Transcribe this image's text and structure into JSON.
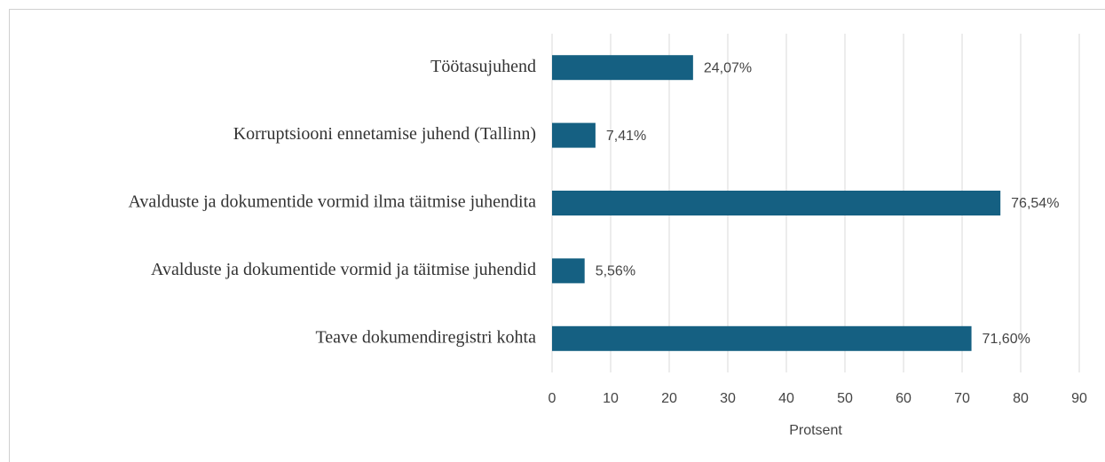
{
  "chart_data": {
    "type": "bar",
    "orientation": "horizontal",
    "categories": [
      "Töötasujuhend",
      "Korruptsiooni ennetamise juhend (Tallinn)",
      "Avalduste ja dokumentide vormid ilma täitmise juhendita",
      "Avalduste ja dokumentide vormid ja täitmise juhendid",
      "Teave dokumendiregistri kohta"
    ],
    "values": [
      24.07,
      7.41,
      76.54,
      5.56,
      71.6
    ],
    "value_labels": [
      "24,07%",
      "7,41%",
      "76,54%",
      "5,56%",
      "71,60%"
    ],
    "color": "#156082",
    "xlim": [
      0,
      90
    ],
    "xticks": [
      0,
      10,
      20,
      30,
      40,
      50,
      60,
      70,
      80,
      90
    ],
    "xlabel": "Protsent",
    "grid": true
  }
}
